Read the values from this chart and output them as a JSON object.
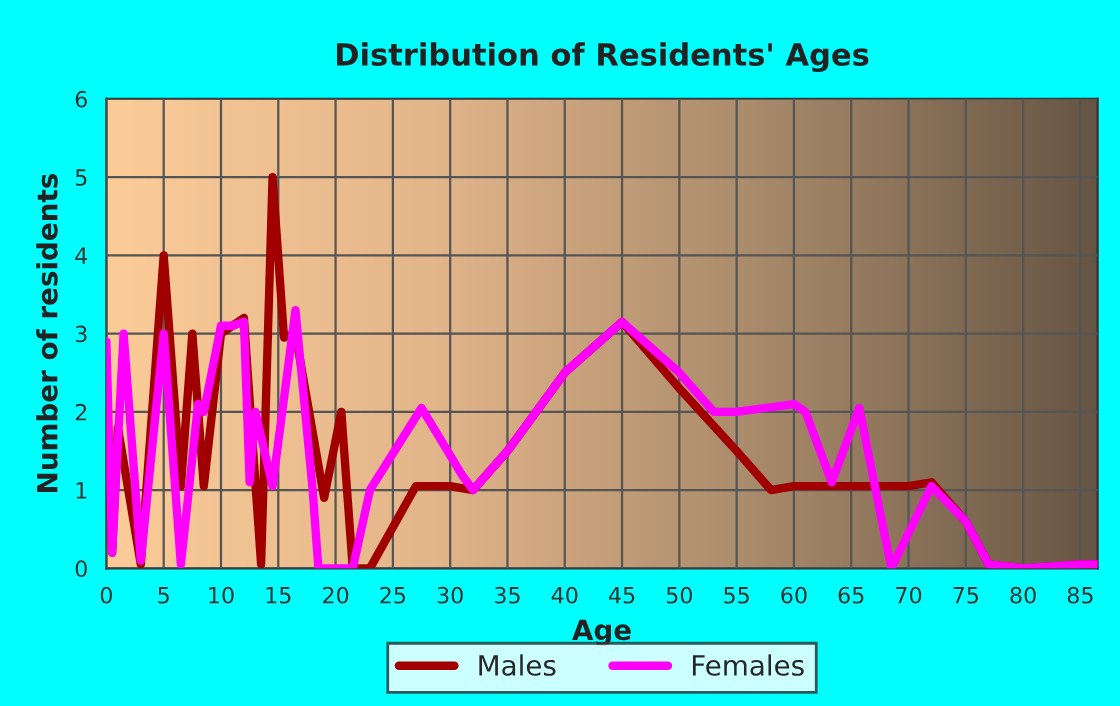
{
  "chart_data": {
    "type": "line",
    "title": "Distribution of Residents' Ages",
    "xlabel": "Age",
    "ylabel": "Number of residents",
    "xlim": [
      0,
      86.5
    ],
    "xticks": [
      0,
      5,
      10,
      15,
      20,
      25,
      30,
      35,
      40,
      45,
      50,
      55,
      60,
      65,
      70,
      75,
      80,
      85
    ],
    "ylim": [
      0,
      6
    ],
    "yticks": [
      0,
      1,
      2,
      3,
      4,
      5,
      6
    ],
    "grid": true,
    "legend": "bottom",
    "series": [
      {
        "name": "Males",
        "color": "#a00000",
        "x": [
          0,
          0.5,
          1,
          3,
          5,
          6.5,
          7.5,
          8.5,
          10,
          11,
          12,
          13.5,
          14.5,
          15.5,
          16.5,
          19,
          20.5,
          21.5,
          23,
          27,
          30,
          32,
          35,
          40,
          45,
          50,
          55,
          58,
          60,
          65,
          70,
          72,
          75,
          77,
          80,
          85,
          86.5
        ],
        "values": [
          2,
          0.2,
          1.8,
          0.05,
          4,
          1.05,
          3,
          1.05,
          3,
          3.1,
          3.2,
          0.05,
          5,
          2.95,
          3,
          0.9,
          2,
          0,
          0,
          1.05,
          1.05,
          1,
          1.5,
          2.5,
          3.15,
          2.3,
          1.5,
          1,
          1.05,
          1.05,
          1.05,
          1.1,
          0.6,
          0.05,
          0,
          0.05,
          0.05
        ]
      },
      {
        "name": "Females",
        "color": "#ff00ff",
        "x": [
          0,
          0.5,
          1.5,
          3,
          5,
          6.5,
          8,
          8.5,
          10,
          11,
          12,
          12.5,
          13,
          14.5,
          16.5,
          18,
          18.5,
          19.5,
          21.5,
          23,
          27.5,
          31,
          32,
          35,
          40,
          45,
          50,
          53,
          55,
          60,
          61,
          63.3,
          65.7,
          68.5,
          72,
          75,
          77,
          80,
          85,
          86.5
        ],
        "values": [
          2.9,
          0.2,
          3,
          0.1,
          3,
          0.05,
          2.1,
          2,
          3.1,
          3.1,
          3.15,
          1.1,
          2,
          1.05,
          3.3,
          1,
          0,
          0,
          0,
          1,
          2.05,
          1.2,
          1,
          1.5,
          2.5,
          3.15,
          2.5,
          2,
          2,
          2.1,
          2,
          1.1,
          2.05,
          0,
          1.05,
          0.6,
          0.05,
          0,
          0.05,
          0.05
        ]
      }
    ]
  }
}
